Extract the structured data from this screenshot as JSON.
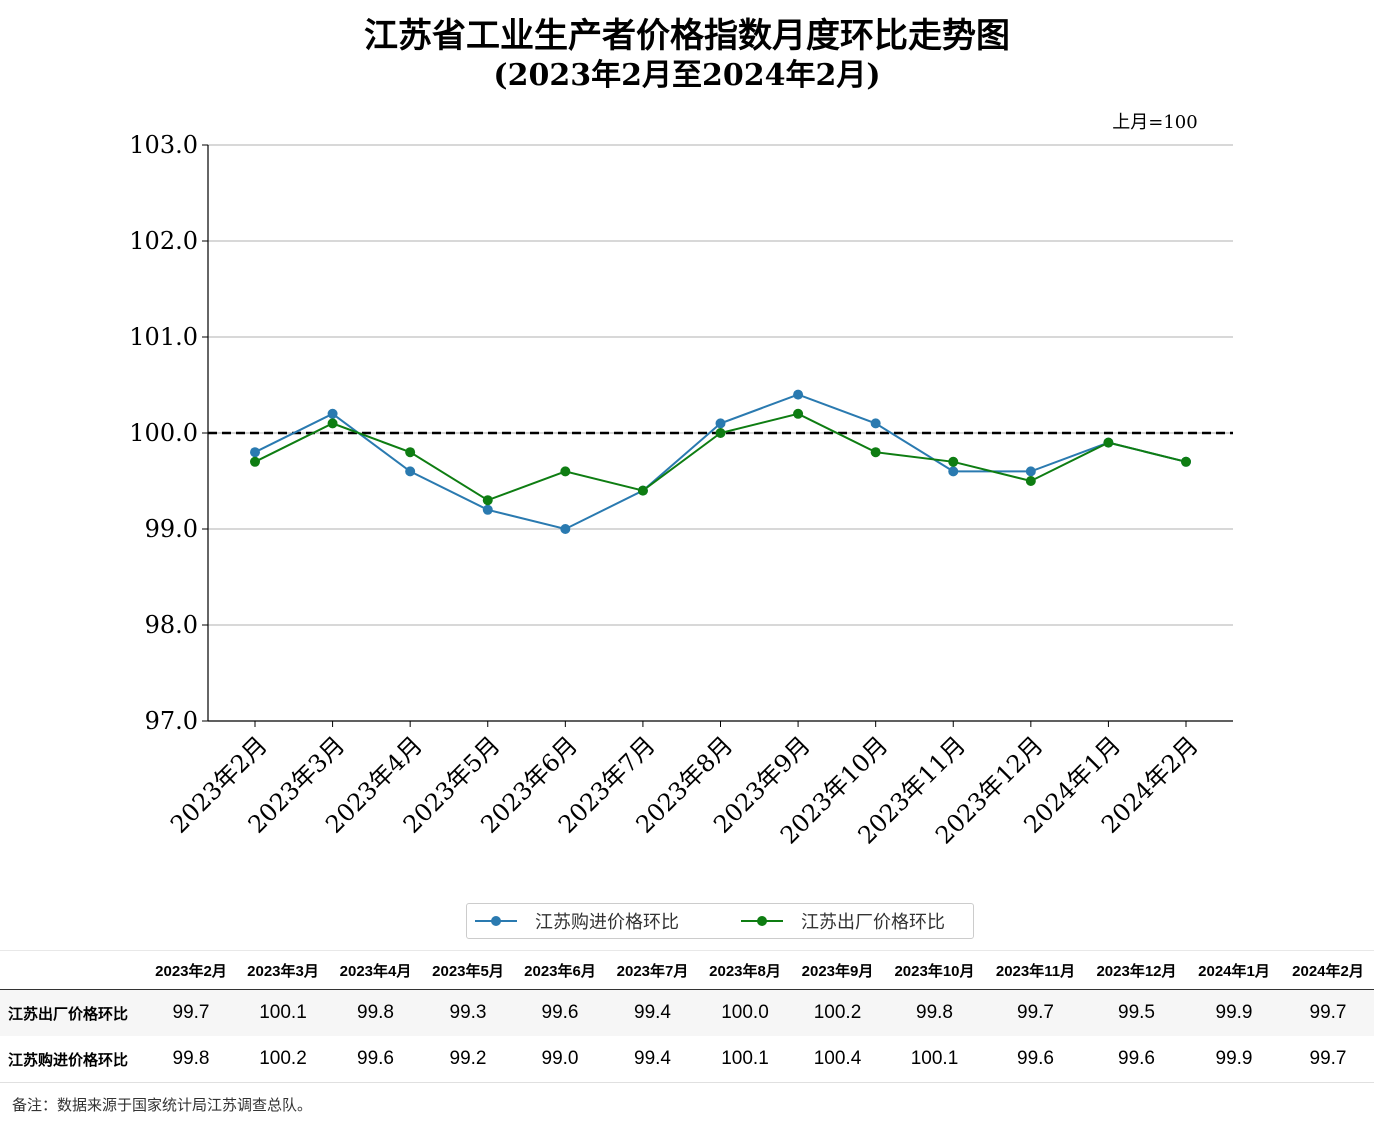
{
  "chart_data": {
    "type": "line",
    "title": "江苏省工业生产者价格指数月度环比走势图",
    "subtitle": "(2023年2月至2024年2月)",
    "unit_label": "上月=100",
    "categories": [
      "2023年2月",
      "2023年3月",
      "2023年4月",
      "2023年5月",
      "2023年6月",
      "2023年7月",
      "2023年8月",
      "2023年9月",
      "2023年10月",
      "2023年11月",
      "2023年12月",
      "2024年1月",
      "2024年2月"
    ],
    "series": [
      {
        "name": "江苏购进价格环比",
        "color": "#2a7ab0",
        "values": [
          99.8,
          100.2,
          99.6,
          99.2,
          99.0,
          99.4,
          100.1,
          100.4,
          100.1,
          99.6,
          99.6,
          99.9,
          99.7
        ]
      },
      {
        "name": "江苏出厂价格环比",
        "color": "#0e7d12",
        "values": [
          99.7,
          100.1,
          99.8,
          99.3,
          99.6,
          99.4,
          100.0,
          100.2,
          99.8,
          99.7,
          99.5,
          99.9,
          99.7
        ]
      }
    ],
    "ylim": [
      97.0,
      103.0
    ],
    "yticks": [
      "97.0",
      "98.0",
      "99.0",
      "100.0",
      "101.0",
      "102.0",
      "103.0"
    ],
    "reference_line": 100.0,
    "grid": "horizontal",
    "legend_position": "bottom-center"
  },
  "table": {
    "columns": [
      "2023年2月",
      "2023年3月",
      "2023年4月",
      "2023年5月",
      "2023年6月",
      "2023年7月",
      "2023年8月",
      "2023年9月",
      "2023年10月",
      "2023年11月",
      "2023年12月",
      "2024年1月",
      "2024年2月"
    ],
    "rows": [
      {
        "label": "江苏出厂价格环比",
        "values": [
          "99.7",
          "100.1",
          "99.8",
          "99.3",
          "99.6",
          "99.4",
          "100.0",
          "100.2",
          "99.8",
          "99.7",
          "99.5",
          "99.9",
          "99.7"
        ]
      },
      {
        "label": "江苏购进价格环比",
        "values": [
          "99.8",
          "100.2",
          "99.6",
          "99.2",
          "99.0",
          "99.4",
          "100.1",
          "100.4",
          "100.1",
          "99.6",
          "99.6",
          "99.9",
          "99.7"
        ]
      }
    ]
  },
  "footnote": "备注：数据来源于国家统计局江苏调查总队。"
}
